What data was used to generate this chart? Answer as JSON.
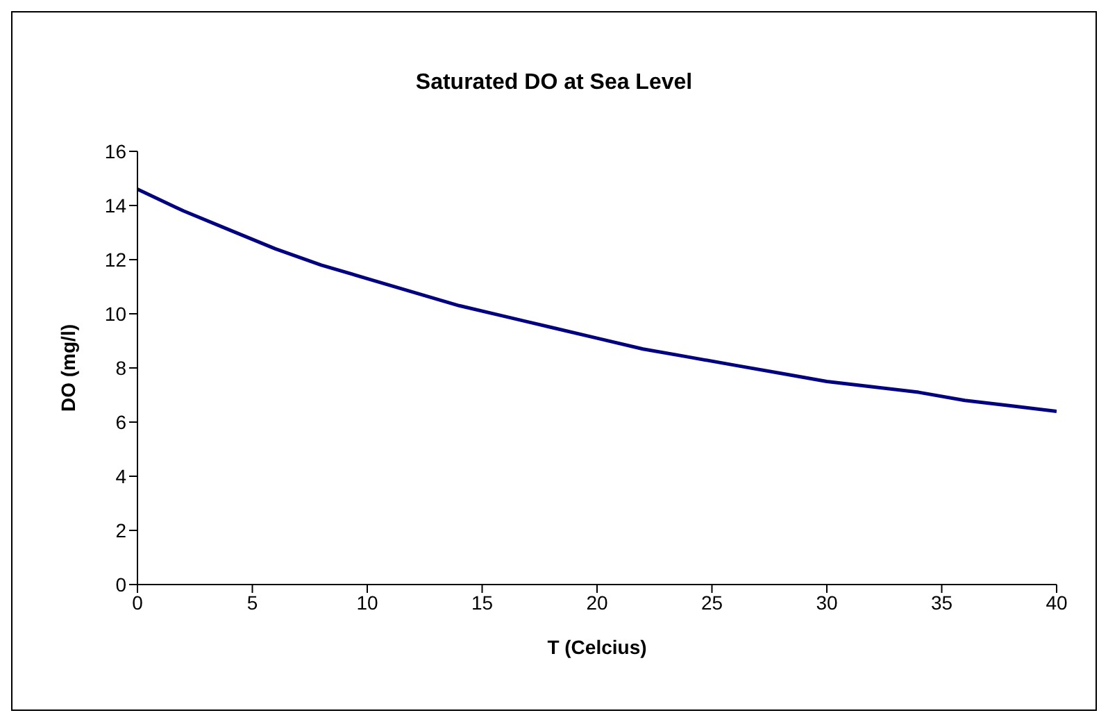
{
  "chart_data": {
    "type": "line",
    "title": "Saturated DO at Sea Level",
    "xlabel": "T (Celcius)",
    "ylabel": "DO (mg/l)",
    "x": [
      0,
      2,
      4,
      6,
      8,
      10,
      12,
      14,
      16,
      18,
      20,
      22,
      24,
      26,
      28,
      30,
      32,
      34,
      36,
      38,
      40
    ],
    "series": [
      {
        "color": "#000080",
        "values": [
          14.6,
          13.8,
          13.1,
          12.4,
          11.8,
          11.3,
          10.8,
          10.3,
          9.9,
          9.5,
          9.1,
          8.7,
          8.4,
          8.1,
          7.8,
          7.5,
          7.3,
          7.1,
          6.8,
          6.6,
          6.4
        ]
      }
    ],
    "xlim": [
      0,
      40
    ],
    "xticks": [
      0,
      5,
      10,
      15,
      20,
      25,
      30,
      35,
      40
    ],
    "ylim": [
      0,
      16
    ],
    "yticks": [
      0,
      2,
      4,
      6,
      8,
      10,
      12,
      14,
      16
    ],
    "grid": false,
    "legend": false,
    "marker": "none",
    "line_style": "solid"
  }
}
